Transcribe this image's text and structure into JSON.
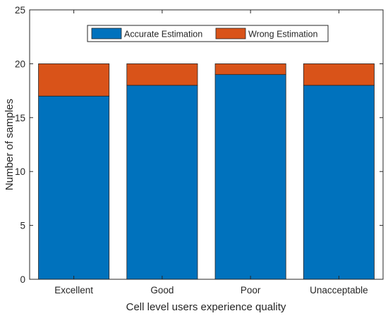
{
  "chart_data": {
    "type": "bar",
    "stacked": true,
    "categories": [
      "Excellent",
      "Good",
      "Poor",
      "Unacceptable"
    ],
    "series": [
      {
        "name": "Accurate Estimation",
        "values": [
          17,
          18,
          19,
          18
        ],
        "color": "#0072bd"
      },
      {
        "name": "Wrong Estimation",
        "values": [
          3,
          2,
          1,
          2
        ],
        "color": "#d95319"
      }
    ],
    "xlabel": "Cell level users experience quality",
    "ylabel": "Number of samples",
    "ylim": [
      0,
      25
    ],
    "yticks": [
      0,
      5,
      10,
      15,
      20,
      25
    ],
    "grid": false,
    "legend": {
      "placement": "top-center",
      "orientation": "horizontal"
    }
  }
}
